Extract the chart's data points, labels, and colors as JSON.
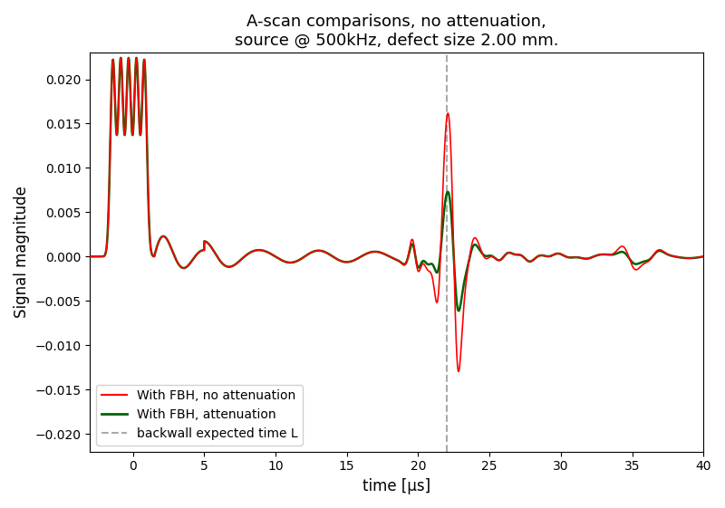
{
  "title": "A-scan comparisons, no attenuation,\nsource @ 500kHz, defect size 2.00 mm.",
  "xlabel": "time [μs]",
  "ylabel": "Signal magnitude",
  "xlim": [
    -3,
    40
  ],
  "ylim": [
    -0.022,
    0.023
  ],
  "vline_x": 22.0,
  "vline_color": "#aaaaaa",
  "vline_label": "backwall expected time L",
  "red_label": "With FBH, no attenuation",
  "green_label": "With FBH, attenuation",
  "red_color": "#ff0000",
  "green_color": "#006400",
  "figsize": [
    8.0,
    5.61
  ],
  "dpi": 100
}
